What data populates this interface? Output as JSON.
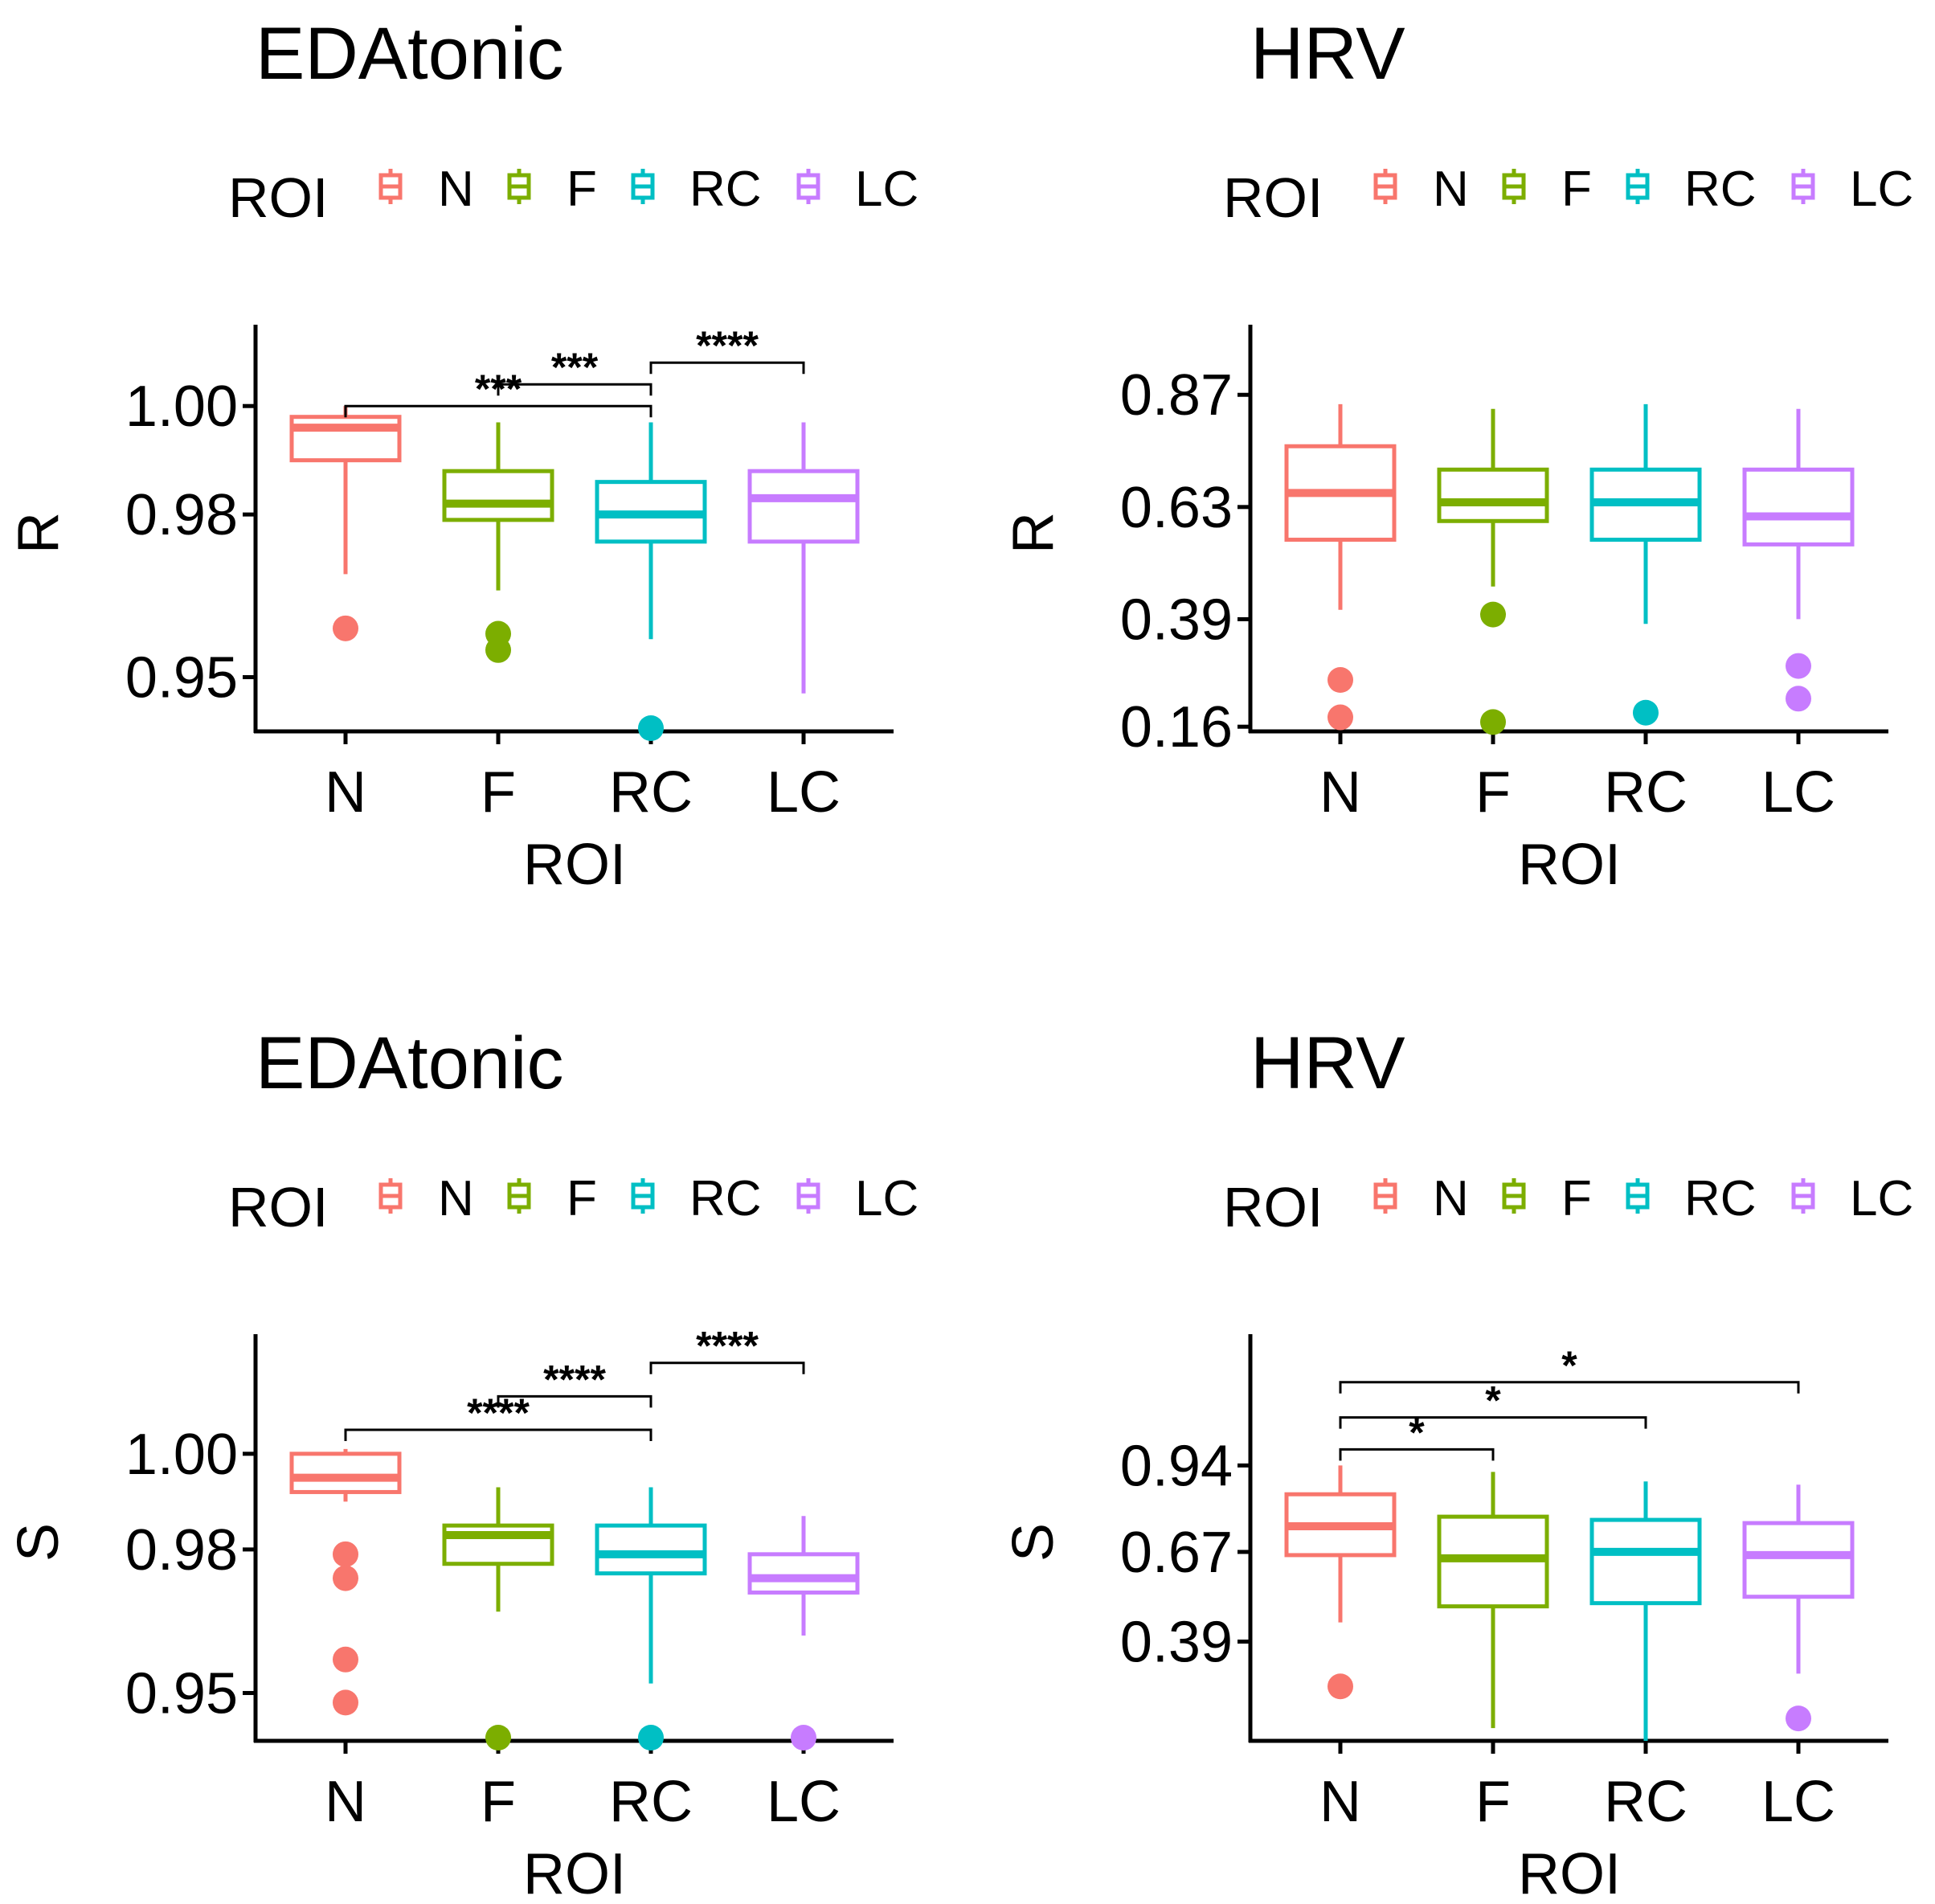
{
  "groups": [
    "N",
    "F",
    "RC",
    "LC"
  ],
  "colors": {
    "N": "#F8766D",
    "F": "#7CAE00",
    "RC": "#00BFC4",
    "LC": "#C77CFF"
  },
  "chart_data": [
    {
      "id": "p1",
      "type": "box",
      "title": "EDAtonic",
      "legend_title": "ROI",
      "legend_labels": [
        "N",
        "F",
        "RC",
        "LC"
      ],
      "xlabel": "ROI",
      "ylabel": "R",
      "categories": [
        "N",
        "F",
        "RC",
        "LC"
      ],
      "ylim": [
        0.94,
        1.015
      ],
      "yticks": [
        0.95,
        0.98,
        1.0
      ],
      "ytick_labels": [
        "0.95",
        "0.98",
        "1.00"
      ],
      "boxes": [
        {
          "group": "N",
          "min": 0.969,
          "q1": 0.99,
          "median": 0.996,
          "q3": 0.998,
          "max": 1.0,
          "outliers": [
            0.959
          ]
        },
        {
          "group": "F",
          "min": 0.966,
          "q1": 0.979,
          "median": 0.982,
          "q3": 0.988,
          "max": 0.997,
          "outliers": [
            0.958,
            0.955
          ]
        },
        {
          "group": "RC",
          "min": 0.957,
          "q1": 0.975,
          "median": 0.98,
          "q3": 0.986,
          "max": 0.997,
          "outliers": [
            0.94
          ]
        },
        {
          "group": "LC",
          "min": 0.947,
          "q1": 0.975,
          "median": 0.983,
          "q3": 0.988,
          "max": 0.997,
          "outliers": []
        }
      ],
      "comparisons": [
        {
          "from": "N",
          "to": "RC",
          "y": 1.0,
          "label": "***"
        },
        {
          "from": "F",
          "to": "RC",
          "y": 1.004,
          "label": "***"
        },
        {
          "from": "RC",
          "to": "LC",
          "y": 1.008,
          "label": "****"
        }
      ]
    },
    {
      "id": "p2",
      "type": "box",
      "title": "HRV",
      "legend_title": "ROI",
      "legend_labels": [
        "N",
        "F",
        "RC",
        "LC"
      ],
      "xlabel": "ROI",
      "ylabel": "R",
      "categories": [
        "N",
        "F",
        "RC",
        "LC"
      ],
      "ylim": [
        0.15,
        1.02
      ],
      "yticks": [
        0.16,
        0.39,
        0.63,
        0.87
      ],
      "ytick_labels": [
        "0.16",
        "0.39",
        "0.63",
        "0.87"
      ],
      "boxes": [
        {
          "group": "N",
          "min": 0.41,
          "q1": 0.56,
          "median": 0.66,
          "q3": 0.76,
          "max": 0.85,
          "outliers": [
            0.26,
            0.18
          ]
        },
        {
          "group": "F",
          "min": 0.46,
          "q1": 0.6,
          "median": 0.64,
          "q3": 0.71,
          "max": 0.84,
          "outliers": [
            0.4,
            0.17
          ]
        },
        {
          "group": "RC",
          "min": 0.38,
          "q1": 0.56,
          "median": 0.64,
          "q3": 0.71,
          "max": 0.85,
          "outliers": [
            0.19
          ]
        },
        {
          "group": "LC",
          "min": 0.39,
          "q1": 0.55,
          "median": 0.61,
          "q3": 0.71,
          "max": 0.84,
          "outliers": [
            0.29,
            0.22
          ]
        }
      ],
      "comparisons": []
    },
    {
      "id": "p3",
      "type": "box",
      "title": "EDAtonic",
      "legend_title": "ROI",
      "legend_labels": [
        "N",
        "F",
        "RC",
        "LC"
      ],
      "xlabel": "ROI",
      "ylabel": "S",
      "categories": [
        "N",
        "F",
        "RC",
        "LC"
      ],
      "ylim": [
        0.94,
        1.025
      ],
      "yticks": [
        0.95,
        0.98,
        1.0
      ],
      "ytick_labels": [
        "0.95",
        "0.98",
        "1.00"
      ],
      "boxes": [
        {
          "group": "N",
          "min": 0.99,
          "q1": 0.992,
          "median": 0.995,
          "q3": 1.0,
          "max": 1.001,
          "outliers": [
            0.979,
            0.974,
            0.957,
            0.948
          ]
        },
        {
          "group": "F",
          "min": 0.967,
          "q1": 0.977,
          "median": 0.983,
          "q3": 0.985,
          "max": 0.993,
          "outliers": [
            0.94
          ]
        },
        {
          "group": "RC",
          "min": 0.952,
          "q1": 0.975,
          "median": 0.979,
          "q3": 0.985,
          "max": 0.993,
          "outliers": [
            0.94
          ]
        },
        {
          "group": "LC",
          "min": 0.962,
          "q1": 0.971,
          "median": 0.974,
          "q3": 0.979,
          "max": 0.987,
          "outliers": [
            0.939
          ]
        }
      ],
      "comparisons": [
        {
          "from": "N",
          "to": "RC",
          "y": 1.005,
          "label": "****"
        },
        {
          "from": "F",
          "to": "RC",
          "y": 1.012,
          "label": "****"
        },
        {
          "from": "RC",
          "to": "LC",
          "y": 1.019,
          "label": "****"
        }
      ]
    },
    {
      "id": "p4",
      "type": "box",
      "title": "HRV",
      "legend_title": "ROI",
      "legend_labels": [
        "N",
        "F",
        "RC",
        "LC"
      ],
      "xlabel": "ROI",
      "ylabel": "S",
      "categories": [
        "N",
        "F",
        "RC",
        "LC"
      ],
      "ylim": [
        0.08,
        1.35
      ],
      "yticks": [
        0.39,
        0.67,
        0.94
      ],
      "ytick_labels": [
        "0.39",
        "0.67",
        "0.94"
      ],
      "boxes": [
        {
          "group": "N",
          "min": 0.45,
          "q1": 0.66,
          "median": 0.75,
          "q3": 0.85,
          "max": 0.94,
          "outliers": [
            0.25
          ]
        },
        {
          "group": "F",
          "min": 0.12,
          "q1": 0.5,
          "median": 0.65,
          "q3": 0.78,
          "max": 0.92,
          "outliers": []
        },
        {
          "group": "RC",
          "min": 0.08,
          "q1": 0.51,
          "median": 0.67,
          "q3": 0.77,
          "max": 0.89,
          "outliers": []
        },
        {
          "group": "LC",
          "min": 0.29,
          "q1": 0.53,
          "median": 0.66,
          "q3": 0.76,
          "max": 0.88,
          "outliers": [
            0.15
          ]
        }
      ],
      "comparisons": [
        {
          "from": "N",
          "to": "F",
          "y": 0.99,
          "label": "*"
        },
        {
          "from": "N",
          "to": "RC",
          "y": 1.09,
          "label": "*"
        },
        {
          "from": "N",
          "to": "LC",
          "y": 1.2,
          "label": "*"
        }
      ]
    }
  ]
}
